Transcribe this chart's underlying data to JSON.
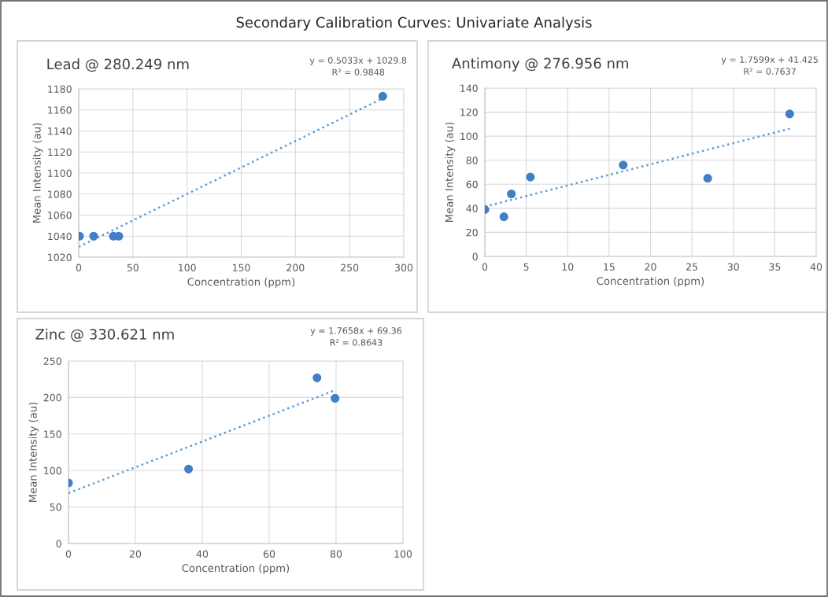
{
  "chart_data": [
    {
      "type": "other",
      "title": "Secondary Calibration Curves: Univariate Analysis"
    },
    {
      "type": "scatter",
      "title": "Lead @ 280.249 nm",
      "xlabel": "Concentration (ppm)",
      "ylabel": "Mean Intensity (au)",
      "xlim": [
        0,
        300
      ],
      "xticks": [
        0,
        50,
        100,
        150,
        200,
        250,
        300
      ],
      "ylim": [
        1020,
        1180
      ],
      "yticks": [
        1020,
        1040,
        1060,
        1080,
        1100,
        1120,
        1140,
        1160,
        1180
      ],
      "grid": true,
      "annotations": [
        "y = 0.5033x + 1029.8",
        "R² = 0.9848"
      ],
      "series": [
        {
          "type": "scatter",
          "marker": "circle",
          "color": "#3f7fc4",
          "x": [
            0.7,
            13.8,
            32,
            37,
            280.6
          ],
          "values": [
            1040,
            1040,
            1040,
            1040,
            1173
          ]
        },
        {
          "type": "line",
          "color": "#5b9bd5",
          "line_style": "dotted",
          "x": [
            0,
            280.6
          ],
          "values": [
            1029.8,
            1171.0
          ]
        }
      ]
    },
    {
      "type": "scatter",
      "title": "Antimony @ 276.956 nm",
      "xlabel": "Concentration (ppm)",
      "ylabel": "Mean Intensity (au)",
      "xlim": [
        0,
        40
      ],
      "xticks": [
        0,
        5,
        10,
        15,
        20,
        25,
        30,
        35,
        40
      ],
      "ylim": [
        0,
        140
      ],
      "yticks": [
        0,
        20,
        40,
        60,
        80,
        100,
        120,
        140
      ],
      "grid": true,
      "annotations": [
        "y = 1.7599x + 41.425",
        "R² = 0.7637"
      ],
      "series": [
        {
          "type": "scatter",
          "marker": "circle",
          "color": "#3f7fc4",
          "x": [
            0,
            2.3,
            3.2,
            5.5,
            16.7,
            26.9,
            36.8
          ],
          "values": [
            39,
            33,
            52,
            66,
            76,
            65,
            118.5
          ]
        },
        {
          "type": "line",
          "color": "#5b9bd5",
          "line_style": "dotted",
          "x": [
            0,
            36.8
          ],
          "values": [
            41.4,
            106.2
          ]
        }
      ]
    },
    {
      "type": "scatter",
      "title": "Zinc @ 330.621 nm",
      "xlabel": "Concentration (ppm)",
      "ylabel": "Mean Intensity (au)",
      "xlim": [
        0,
        100
      ],
      "xticks": [
        0,
        20,
        40,
        60,
        80,
        100
      ],
      "ylim": [
        0,
        250
      ],
      "yticks": [
        0,
        50,
        100,
        150,
        200,
        250
      ],
      "grid": true,
      "annotations": [
        "y = 1.7658x + 69.36",
        "R² = 0.8643"
      ],
      "series": [
        {
          "type": "scatter",
          "marker": "circle",
          "color": "#3f7fc4",
          "x": [
            0,
            35.9,
            74.3,
            79.7
          ],
          "values": [
            83,
            102,
            227,
            199
          ]
        },
        {
          "type": "line",
          "color": "#5b9bd5",
          "line_style": "dotted",
          "x": [
            0,
            79.7
          ],
          "values": [
            69,
            210
          ]
        }
      ]
    }
  ]
}
